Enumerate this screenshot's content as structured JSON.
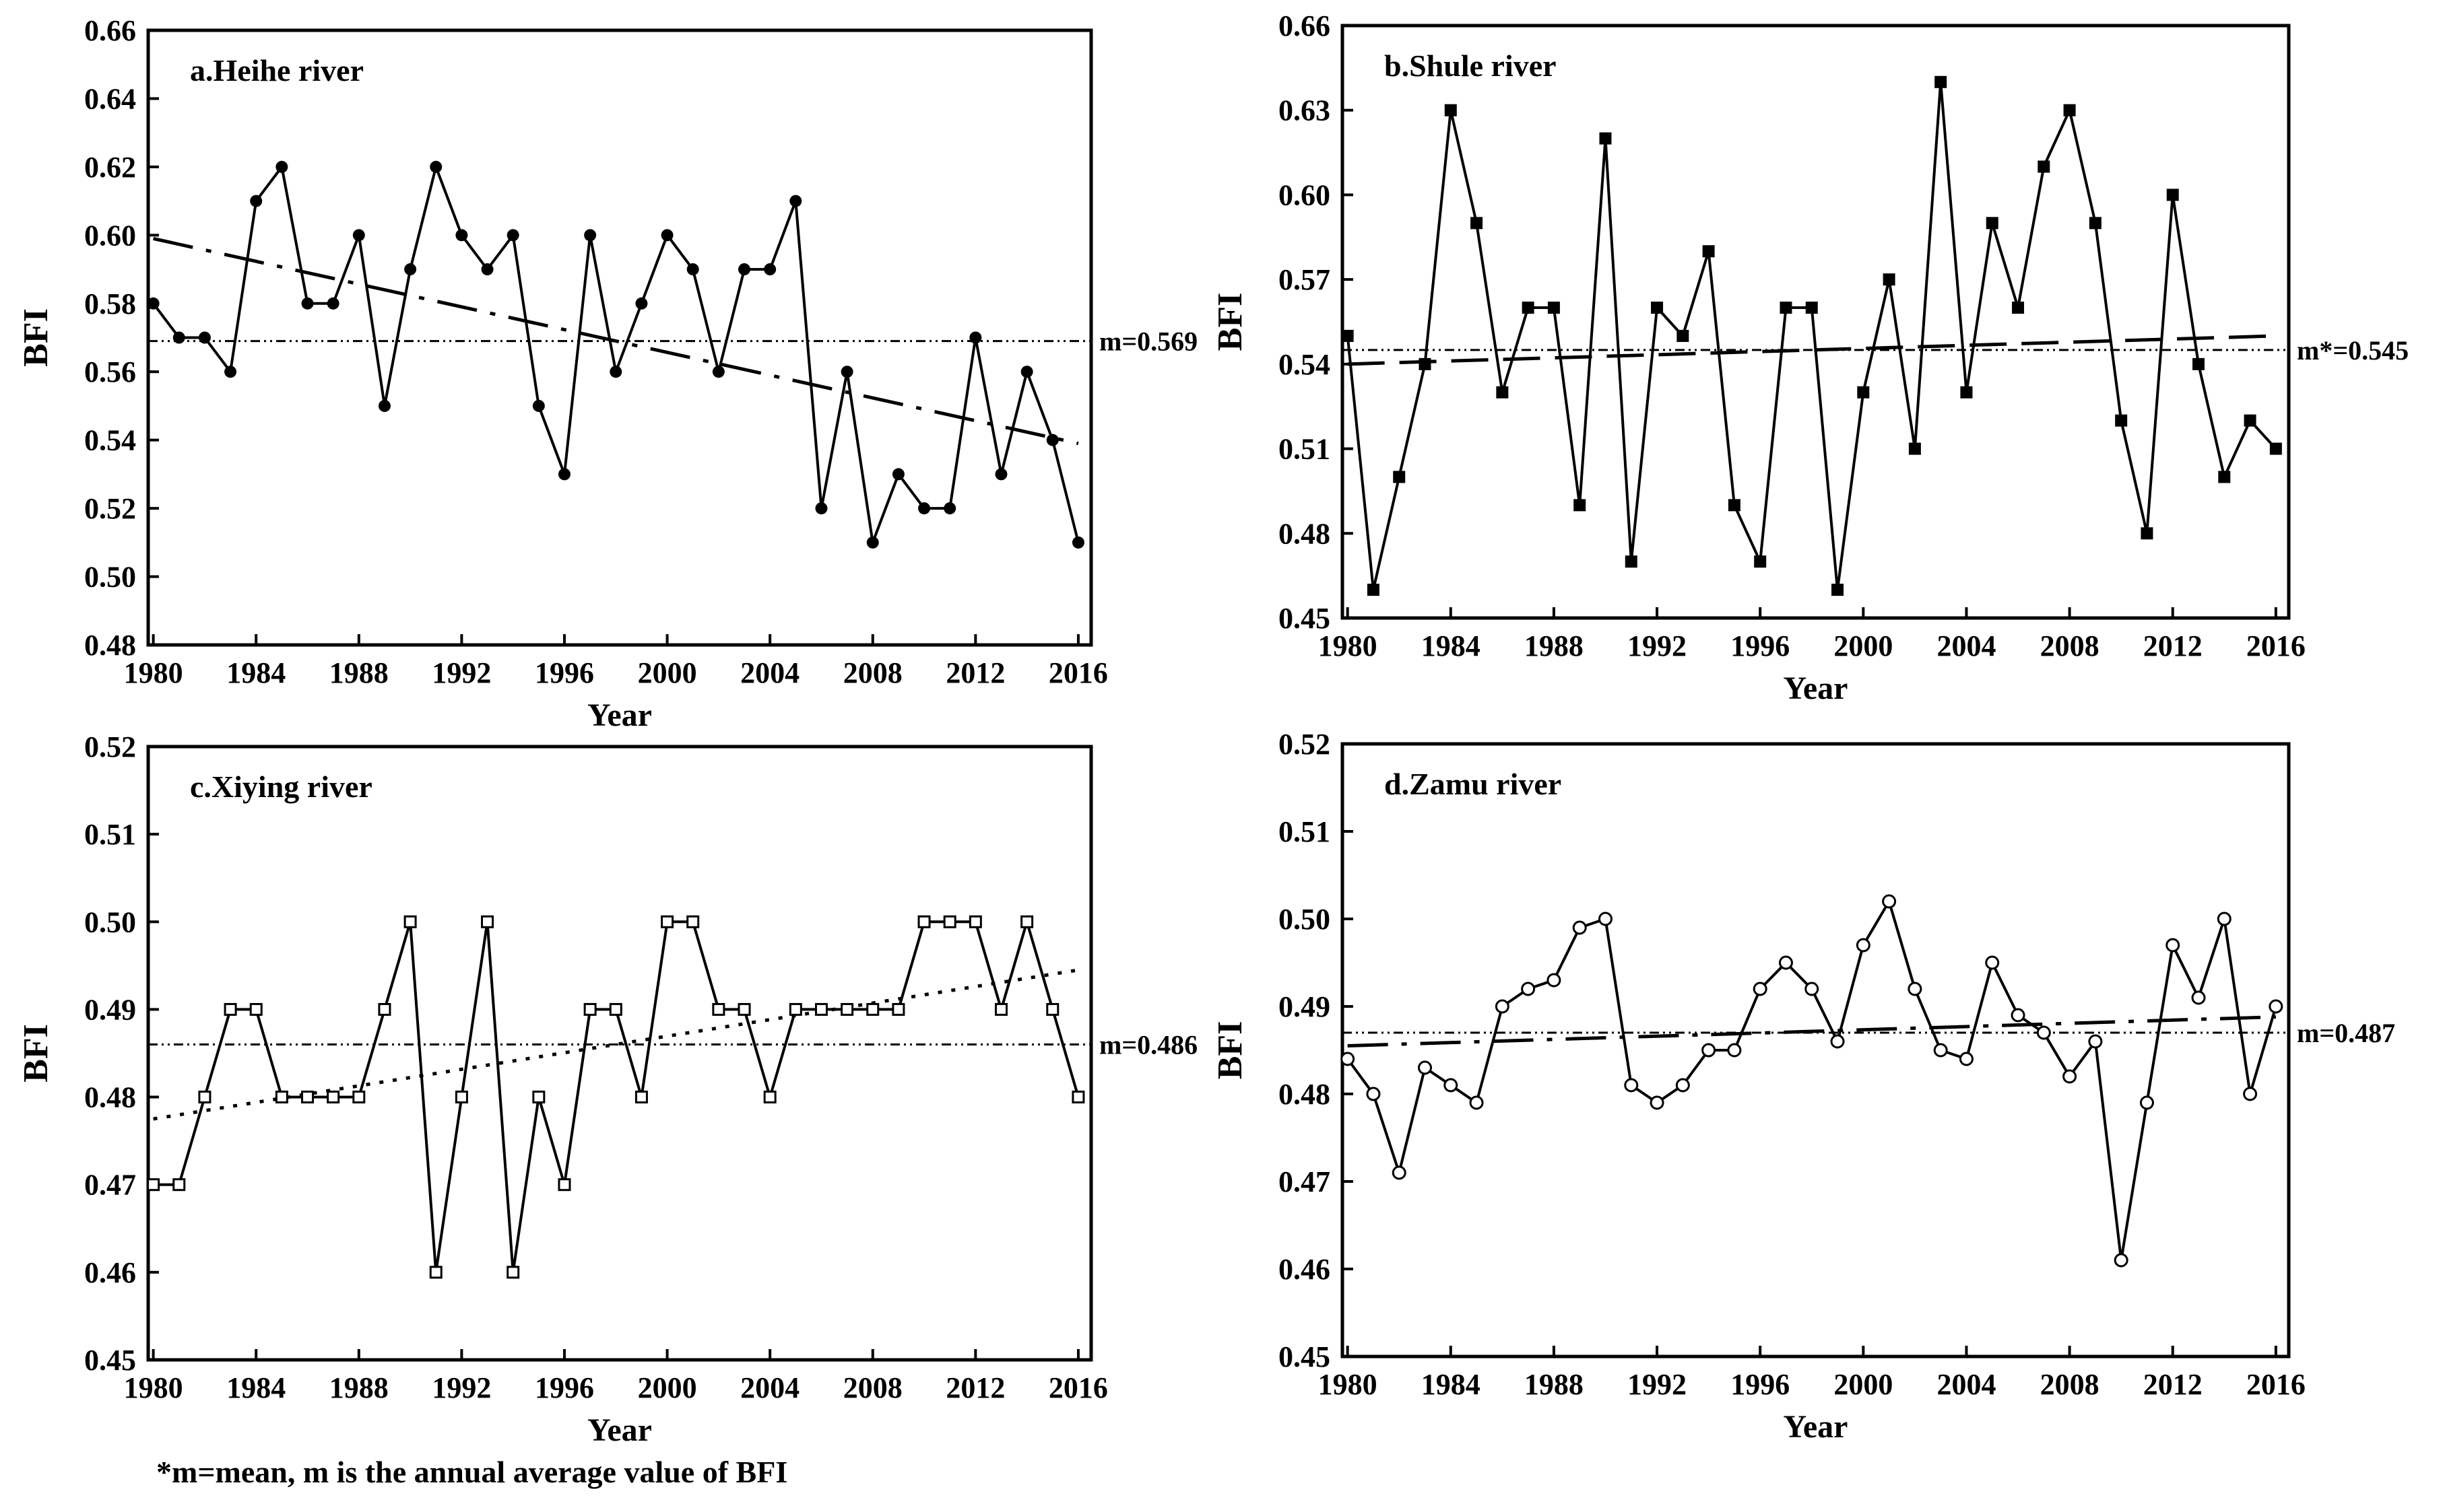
{
  "footnote": "*m=mean, m is the annual average value of BFI",
  "chart_data": [
    {
      "type": "line",
      "panel": "a",
      "title": "a.Heihe river",
      "xlabel": "Year",
      "ylabel": "BFI",
      "xlim": [
        1979.8,
        2016.5
      ],
      "ylim": [
        0.48,
        0.66
      ],
      "xticks": [
        "1980",
        "1984",
        "1988",
        "1992",
        "1996",
        "2000",
        "2004",
        "2008",
        "2012",
        "2016"
      ],
      "yticks": [
        "0.48",
        "0.50",
        "0.52",
        "0.54",
        "0.56",
        "0.58",
        "0.60",
        "0.62",
        "0.64",
        "0.66"
      ],
      "marker": "filled-circle",
      "x": [
        1980,
        1981,
        1982,
        1983,
        1984,
        1985,
        1986,
        1987,
        1988,
        1989,
        1990,
        1991,
        1992,
        1993,
        1994,
        1995,
        1996,
        1997,
        1998,
        1999,
        2000,
        2001,
        2002,
        2003,
        2004,
        2005,
        2006,
        2007,
        2008,
        2009,
        2010,
        2011,
        2012,
        2013,
        2014,
        2015,
        2016
      ],
      "values": [
        0.58,
        0.57,
        0.57,
        0.56,
        0.61,
        0.62,
        0.58,
        0.58,
        0.6,
        0.55,
        0.59,
        0.62,
        0.6,
        0.59,
        0.6,
        0.55,
        0.53,
        0.6,
        0.56,
        0.58,
        0.6,
        0.59,
        0.56,
        0.59,
        0.59,
        0.61,
        0.52,
        0.56,
        0.51,
        0.53,
        0.52,
        0.52,
        0.57,
        0.53,
        0.56,
        0.54,
        0.51
      ],
      "mean": 0.569,
      "mean_label": "m=0.569",
      "trend": {
        "style": "dash-dot",
        "start": [
          1980,
          0.599
        ],
        "end": [
          2016,
          0.539
        ]
      }
    },
    {
      "type": "line",
      "panel": "b",
      "title": "b.Shule river",
      "xlabel": "Year",
      "ylabel": "BFI",
      "xlim": [
        1979.8,
        2016.5
      ],
      "ylim": [
        0.45,
        0.66
      ],
      "xticks": [
        "1980",
        "1984",
        "1988",
        "1992",
        "1996",
        "2000",
        "2004",
        "2008",
        "2012",
        "2016"
      ],
      "yticks": [
        "0.45",
        "0.48",
        "0.51",
        "0.54",
        "0.57",
        "0.60",
        "0.63",
        "0.66"
      ],
      "marker": "filled-square",
      "x": [
        1980,
        1981,
        1982,
        1983,
        1984,
        1985,
        1986,
        1987,
        1988,
        1989,
        1990,
        1991,
        1992,
        1993,
        1994,
        1995,
        1996,
        1997,
        1998,
        1999,
        2000,
        2001,
        2002,
        2003,
        2004,
        2005,
        2006,
        2007,
        2008,
        2009,
        2010,
        2011,
        2012,
        2013,
        2014,
        2015,
        2016
      ],
      "values": [
        0.55,
        0.46,
        0.5,
        0.54,
        0.63,
        0.59,
        0.53,
        0.56,
        0.56,
        0.49,
        0.62,
        0.47,
        0.56,
        0.55,
        0.58,
        0.49,
        0.47,
        0.56,
        0.56,
        0.46,
        0.53,
        0.57,
        0.51,
        0.64,
        0.53,
        0.59,
        0.56,
        0.61,
        0.63,
        0.59,
        0.52,
        0.48,
        0.6,
        0.54,
        0.5,
        0.52,
        0.51
      ],
      "mean": 0.545,
      "mean_label": "m*=0.545",
      "trend": {
        "style": "dashed",
        "start": [
          1980,
          0.54
        ],
        "end": [
          2016,
          0.55
        ]
      }
    },
    {
      "type": "line",
      "panel": "c",
      "title": "c.Xiying river",
      "xlabel": "Year",
      "ylabel": "BFI",
      "xlim": [
        1979.8,
        2016.5
      ],
      "ylim": [
        0.45,
        0.52
      ],
      "xticks": [
        "1980",
        "1984",
        "1988",
        "1992",
        "1996",
        "2000",
        "2004",
        "2008",
        "2012",
        "2016"
      ],
      "yticks": [
        "0.45",
        "0.46",
        "0.47",
        "0.48",
        "0.49",
        "0.50",
        "0.51",
        "0.52"
      ],
      "marker": "open-square",
      "x": [
        1980,
        1981,
        1982,
        1983,
        1984,
        1985,
        1986,
        1987,
        1988,
        1989,
        1990,
        1991,
        1992,
        1993,
        1994,
        1995,
        1996,
        1997,
        1998,
        1999,
        2000,
        2001,
        2002,
        2003,
        2004,
        2005,
        2006,
        2007,
        2008,
        2009,
        2010,
        2011,
        2012,
        2013,
        2014,
        2015,
        2016
      ],
      "values": [
        0.47,
        0.47,
        0.48,
        0.49,
        0.49,
        0.48,
        0.48,
        0.48,
        0.48,
        0.49,
        0.5,
        0.46,
        0.48,
        0.5,
        0.46,
        0.48,
        0.47,
        0.49,
        0.49,
        0.48,
        0.5,
        0.5,
        0.49,
        0.49,
        0.48,
        0.49,
        0.49,
        0.49,
        0.49,
        0.49,
        0.5,
        0.5,
        0.5,
        0.49,
        0.5,
        0.49,
        0.48
      ],
      "mean": 0.486,
      "mean_label": "m=0.486",
      "trend": {
        "style": "dotted",
        "start": [
          1980,
          0.4775
        ],
        "end": [
          2016,
          0.4945
        ]
      }
    },
    {
      "type": "line",
      "panel": "d",
      "title": "d.Zamu river",
      "xlabel": "Year",
      "ylabel": "BFI",
      "xlim": [
        1979.8,
        2016.5
      ],
      "ylim": [
        0.45,
        0.52
      ],
      "xticks": [
        "1980",
        "1984",
        "1988",
        "1992",
        "1996",
        "2000",
        "2004",
        "2008",
        "2012",
        "2016"
      ],
      "yticks": [
        "0.45",
        "0.46",
        "0.47",
        "0.48",
        "0.49",
        "0.50",
        "0.51",
        "0.52"
      ],
      "marker": "open-circle",
      "x": [
        1980,
        1981,
        1982,
        1983,
        1984,
        1985,
        1986,
        1987,
        1988,
        1989,
        1990,
        1991,
        1992,
        1993,
        1994,
        1995,
        1996,
        1997,
        1998,
        1999,
        2000,
        2001,
        2002,
        2003,
        2004,
        2005,
        2006,
        2007,
        2008,
        2009,
        2010,
        2011,
        2012,
        2013,
        2014,
        2015,
        2016
      ],
      "values": [
        0.484,
        0.48,
        0.471,
        0.483,
        0.481,
        0.479,
        0.49,
        0.492,
        0.493,
        0.499,
        0.5,
        0.481,
        0.479,
        0.481,
        0.485,
        0.485,
        0.492,
        0.495,
        0.492,
        0.486,
        0.497,
        0.502,
        0.492,
        0.485,
        0.484,
        0.495,
        0.489,
        0.487,
        0.482,
        0.486,
        0.461,
        0.479,
        0.497,
        0.491,
        0.5,
        0.48,
        0.49
      ],
      "mean": 0.487,
      "mean_label": "m=0.487",
      "trend": {
        "style": "dash-dot",
        "start": [
          1980,
          0.4855
        ],
        "end": [
          2016,
          0.4888
        ]
      }
    }
  ]
}
